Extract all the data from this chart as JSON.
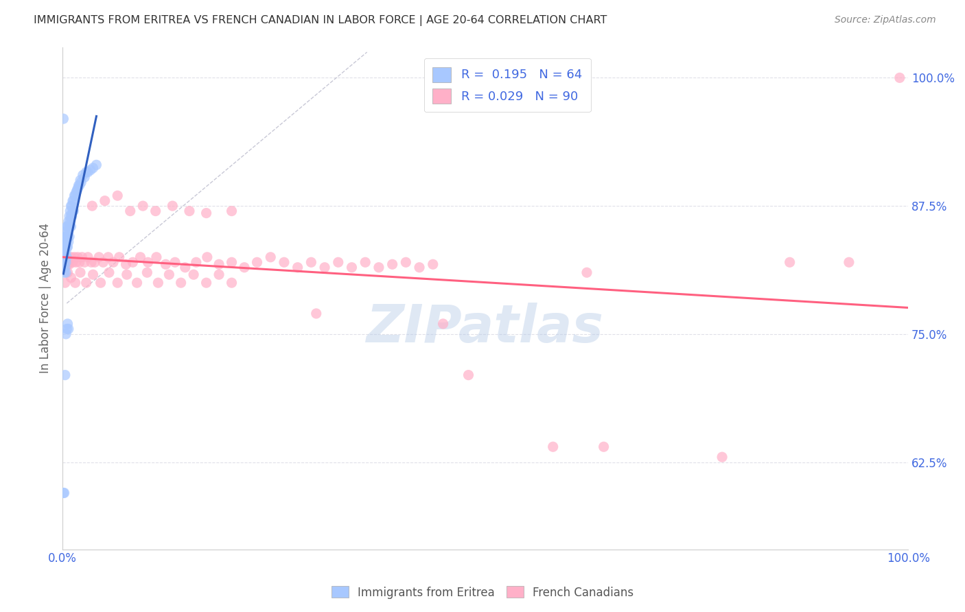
{
  "title": "IMMIGRANTS FROM ERITREA VS FRENCH CANADIAN IN LABOR FORCE | AGE 20-64 CORRELATION CHART",
  "source": "Source: ZipAtlas.com",
  "ylabel": "In Labor Force | Age 20-64",
  "xlim": [
    0.0,
    1.0
  ],
  "ylim": [
    0.54,
    1.03
  ],
  "x_ticks": [
    0.0,
    0.2,
    0.4,
    0.6,
    0.8,
    1.0
  ],
  "x_tick_labels": [
    "0.0%",
    "",
    "",
    "",
    "",
    "100.0%"
  ],
  "y_tick_labels": [
    "62.5%",
    "75.0%",
    "87.5%",
    "100.0%"
  ],
  "y_ticks": [
    0.625,
    0.75,
    0.875,
    1.0
  ],
  "color_blue": "#A8C8FF",
  "color_pink": "#FFB0C8",
  "trend_color_blue": "#3060C0",
  "trend_color_pink": "#FF6080",
  "diagonal_color": "#BBBBCC",
  "background_color": "#FFFFFF",
  "grid_color": "#E0E0E8",
  "axis_color": "#4169E1",
  "watermark": "ZIPatlas",
  "blue_x": [
    0.001,
    0.001,
    0.002,
    0.002,
    0.002,
    0.003,
    0.003,
    0.003,
    0.003,
    0.004,
    0.004,
    0.004,
    0.004,
    0.004,
    0.005,
    0.005,
    0.005,
    0.005,
    0.006,
    0.006,
    0.006,
    0.007,
    0.007,
    0.007,
    0.008,
    0.008,
    0.008,
    0.009,
    0.009,
    0.01,
    0.01,
    0.01,
    0.011,
    0.011,
    0.012,
    0.012,
    0.013,
    0.013,
    0.014,
    0.015,
    0.016,
    0.017,
    0.018,
    0.019,
    0.02,
    0.021,
    0.022,
    0.024,
    0.026,
    0.028,
    0.03,
    0.033,
    0.036,
    0.04,
    0.001,
    0.001,
    0.002,
    0.003,
    0.004,
    0.005,
    0.006,
    0.007,
    0.002,
    0.001
  ],
  "blue_y": [
    0.835,
    0.825,
    0.84,
    0.83,
    0.82,
    0.845,
    0.835,
    0.825,
    0.815,
    0.85,
    0.84,
    0.83,
    0.82,
    0.81,
    0.855,
    0.845,
    0.835,
    0.825,
    0.855,
    0.845,
    0.835,
    0.86,
    0.85,
    0.84,
    0.865,
    0.855,
    0.845,
    0.87,
    0.86,
    0.875,
    0.865,
    0.855,
    0.875,
    0.865,
    0.88,
    0.87,
    0.88,
    0.87,
    0.885,
    0.885,
    0.888,
    0.89,
    0.892,
    0.895,
    0.895,
    0.9,
    0.898,
    0.905,
    0.903,
    0.908,
    0.908,
    0.91,
    0.912,
    0.915,
    0.96,
    0.595,
    0.595,
    0.71,
    0.75,
    0.755,
    0.76,
    0.755,
    0.81,
    0.815
  ],
  "pink_x": [
    0.002,
    0.003,
    0.004,
    0.005,
    0.006,
    0.007,
    0.008,
    0.01,
    0.012,
    0.014,
    0.016,
    0.018,
    0.02,
    0.023,
    0.026,
    0.03,
    0.034,
    0.038,
    0.043,
    0.048,
    0.054,
    0.06,
    0.067,
    0.075,
    0.083,
    0.092,
    0.101,
    0.111,
    0.122,
    0.133,
    0.145,
    0.158,
    0.171,
    0.185,
    0.2,
    0.215,
    0.23,
    0.246,
    0.262,
    0.278,
    0.294,
    0.31,
    0.326,
    0.342,
    0.358,
    0.374,
    0.39,
    0.406,
    0.422,
    0.438,
    0.003,
    0.006,
    0.01,
    0.015,
    0.021,
    0.028,
    0.036,
    0.045,
    0.055,
    0.065,
    0.076,
    0.088,
    0.1,
    0.113,
    0.126,
    0.14,
    0.155,
    0.17,
    0.185,
    0.2,
    0.48,
    0.58,
    0.62,
    0.64,
    0.78,
    0.86,
    0.93,
    0.99,
    0.3,
    0.45,
    0.035,
    0.05,
    0.065,
    0.08,
    0.095,
    0.11,
    0.13,
    0.15,
    0.17,
    0.2
  ],
  "pink_y": [
    0.82,
    0.825,
    0.82,
    0.825,
    0.818,
    0.822,
    0.818,
    0.825,
    0.82,
    0.825,
    0.82,
    0.825,
    0.82,
    0.825,
    0.82,
    0.825,
    0.82,
    0.82,
    0.825,
    0.82,
    0.825,
    0.82,
    0.825,
    0.818,
    0.82,
    0.825,
    0.82,
    0.825,
    0.818,
    0.82,
    0.815,
    0.82,
    0.825,
    0.818,
    0.82,
    0.815,
    0.82,
    0.825,
    0.82,
    0.815,
    0.82,
    0.815,
    0.82,
    0.815,
    0.82,
    0.815,
    0.818,
    0.82,
    0.815,
    0.818,
    0.8,
    0.81,
    0.805,
    0.8,
    0.81,
    0.8,
    0.808,
    0.8,
    0.81,
    0.8,
    0.808,
    0.8,
    0.81,
    0.8,
    0.808,
    0.8,
    0.808,
    0.8,
    0.808,
    0.8,
    0.71,
    0.64,
    0.81,
    0.64,
    0.63,
    0.82,
    0.82,
    1.0,
    0.77,
    0.76,
    0.875,
    0.88,
    0.885,
    0.87,
    0.875,
    0.87,
    0.875,
    0.87,
    0.868,
    0.87
  ]
}
